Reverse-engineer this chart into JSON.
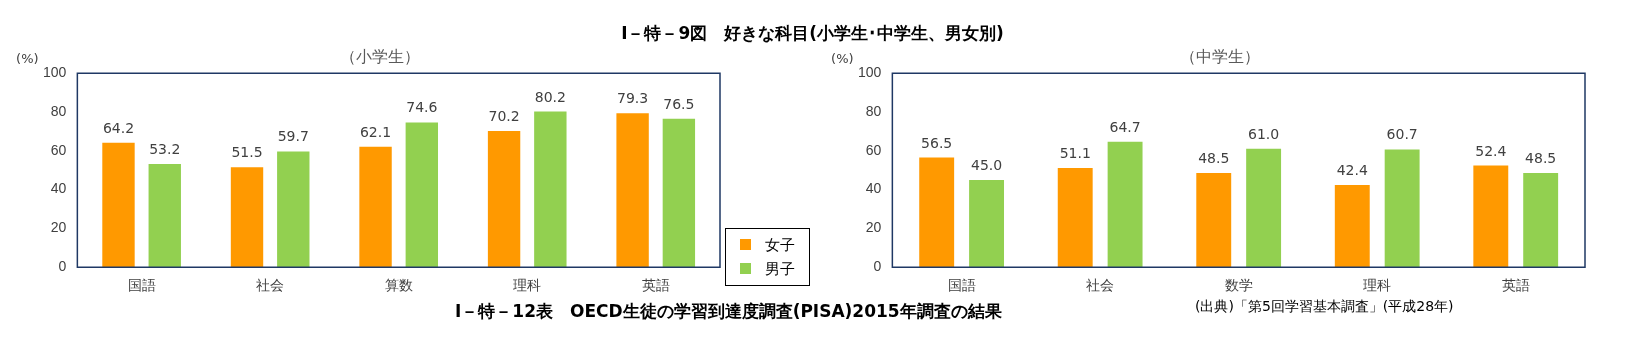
{
  "chart_data": [
    {
      "type": "bar",
      "title": "Ⅰ－特－9図　好きな科目(小学生･中学生、男女別)",
      "subtitle": "（小学生）",
      "ylabel": "(%)",
      "categories": [
        "国語",
        "社会",
        "算数",
        "理科",
        "英語"
      ],
      "series": [
        {
          "name": "女子",
          "color": "#ff9900",
          "values": [
            64.2,
            51.5,
            62.1,
            70.2,
            79.3
          ]
        },
        {
          "name": "男子",
          "color": "#92d050",
          "values": [
            53.2,
            59.7,
            74.6,
            80.2,
            76.5
          ]
        }
      ],
      "ylim": [
        0,
        100
      ],
      "yticks": [
        0,
        20,
        40,
        60,
        80,
        100
      ],
      "data_labels": true,
      "legend": "bottom right"
    },
    {
      "type": "bar",
      "subtitle": "（中学生）",
      "ylabel": "(%)",
      "categories": [
        "国語",
        "社会",
        "数学",
        "理科",
        "英語"
      ],
      "series": [
        {
          "color": "#ff9900",
          "values": [
            56.5,
            51.1,
            48.5,
            42.4,
            52.4
          ],
          "value_labels": [
            "56.5",
            "51.1",
            "48.5",
            "42.4",
            "52.4"
          ]
        },
        {
          "color": "#92d050",
          "values": [
            45,
            64.7,
            61,
            60.7,
            48.5
          ],
          "value_labels": [
            "45.0",
            "64.7",
            "61.0",
            "60.7",
            "48.5"
          ]
        }
      ],
      "ylim": [
        0,
        100
      ],
      "yticks": [
        0,
        20,
        40,
        60,
        80,
        100
      ],
      "annotations": [
        "Ⅰ－特－12表　OECD生徒の学習到達度調査(PISA)2015年調査の結果",
        "(出典)「第5回学習基本調査」(平成28年)"
      ]
    }
  ]
}
